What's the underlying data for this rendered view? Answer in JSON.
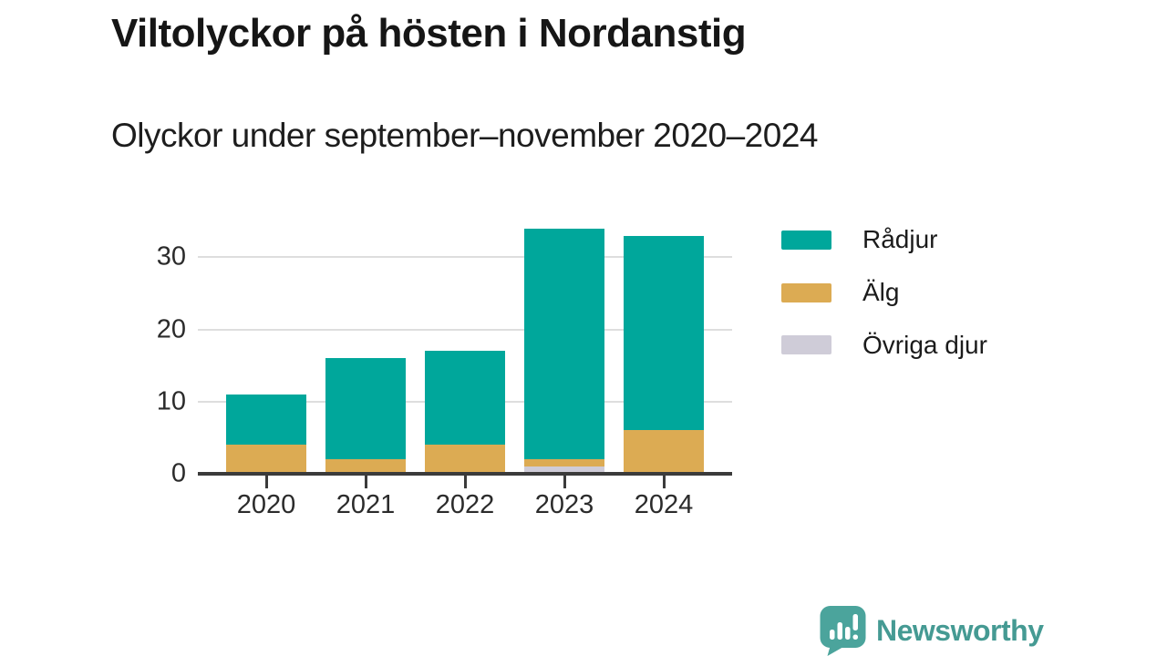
{
  "title": "Viltolyckor på hösten i Nordanstig",
  "subtitle": "Olyckor under september–november 2020–2024",
  "chart_data": {
    "type": "bar",
    "stacked": true,
    "title": "Viltolyckor på hösten i Nordanstig",
    "subtitle": "Olyckor under september–november 2020–2024",
    "categories": [
      "2020",
      "2021",
      "2022",
      "2023",
      "2024"
    ],
    "series": [
      {
        "name": "Rådjur",
        "color": "#00a79b",
        "values": [
          7,
          14,
          13,
          32,
          27
        ]
      },
      {
        "name": "Älg",
        "color": "#dcab53",
        "values": [
          4,
          2,
          4,
          1,
          6
        ]
      },
      {
        "name": "Övriga djur",
        "color": "#cfccd8",
        "values": [
          0,
          0,
          0,
          1,
          0
        ]
      }
    ],
    "stack_order_bottom_to_top": [
      "Övriga djur",
      "Älg",
      "Rådjur"
    ],
    "xlabel": "",
    "ylabel": "",
    "ylim": [
      0,
      35
    ],
    "yticks": [
      0,
      10,
      20,
      30
    ],
    "grid": "horizontal",
    "legend_position": "right"
  },
  "colors": {
    "axis": "#3b3b3b",
    "gridline": "#dedede",
    "text": "#1b1b1b",
    "brand_teal": "#459a93",
    "brand_bubble": "#4ba49c"
  },
  "branding": {
    "logo_text": "Newsworthy",
    "logo_icon": "bar-chart-speech-bubble-icon"
  }
}
